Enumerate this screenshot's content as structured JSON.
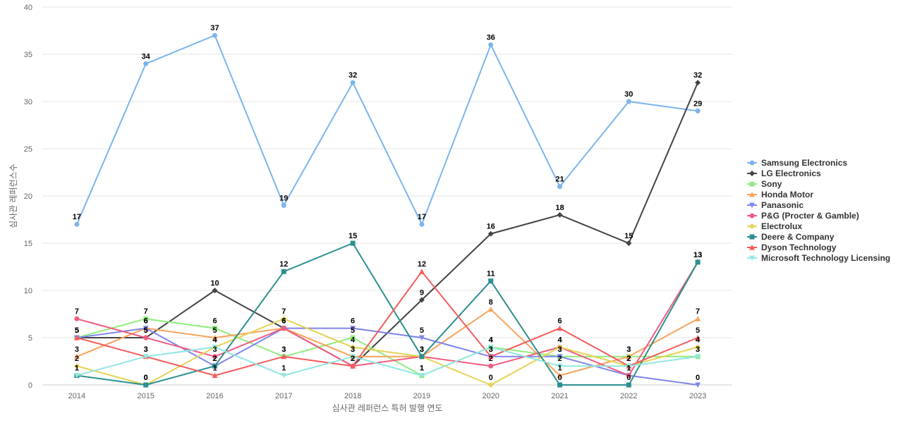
{
  "chart_data": {
    "type": "line",
    "title": "",
    "xlabel": "심사관 레퍼런스 특허 발행 연도",
    "ylabel": "심사관 레퍼런스수",
    "x": [
      "2014",
      "2015",
      "2016",
      "2017",
      "2018",
      "2019",
      "2020",
      "2021",
      "2022",
      "2023"
    ],
    "ylim": [
      0,
      40
    ],
    "yticks": [
      0,
      5,
      10,
      15,
      20,
      25,
      30,
      35,
      40
    ],
    "grid": true,
    "legend_position": "right",
    "series": [
      {
        "name": "Samsung Electronics",
        "color": "#7cb5ec",
        "marker": "circle",
        "values": [
          17,
          34,
          37,
          19,
          32,
          17,
          36,
          21,
          30,
          29
        ]
      },
      {
        "name": "LG Electronics",
        "color": "#434348",
        "marker": "diamond",
        "values": [
          5,
          5,
          10,
          6,
          2,
          9,
          16,
          18,
          15,
          32
        ]
      },
      {
        "name": "Sony",
        "color": "#90ed7d",
        "marker": "square",
        "values": [
          5,
          7,
          6,
          3,
          5,
          1,
          4,
          3,
          3,
          3
        ]
      },
      {
        "name": "Honda Motor",
        "color": "#f7a35c",
        "marker": "triangle",
        "values": [
          3,
          6,
          5,
          6,
          3,
          3,
          8,
          1,
          3,
          7
        ]
      },
      {
        "name": "Panasonic",
        "color": "#8085e9",
        "marker": "triangle-down",
        "values": [
          5,
          6,
          2,
          6,
          6,
          5,
          3,
          3,
          1,
          0
        ]
      },
      {
        "name": "P&G (Procter & Gamble)",
        "color": "#f15c80",
        "marker": "circle",
        "values": [
          7,
          5,
          3,
          6,
          2,
          3,
          2,
          4,
          1,
          13
        ]
      },
      {
        "name": "Electrolux",
        "color": "#e4d354",
        "marker": "diamond",
        "values": [
          2,
          0,
          4,
          7,
          4,
          3,
          0,
          4,
          2,
          4
        ]
      },
      {
        "name": "Deere & Company",
        "color": "#2b908f",
        "marker": "square",
        "values": [
          1,
          0,
          2,
          12,
          15,
          3,
          11,
          0,
          0,
          13
        ]
      },
      {
        "name": "Dyson Technology",
        "color": "#f45b5b",
        "marker": "triangle",
        "values": [
          5,
          3,
          1,
          3,
          2,
          12,
          3,
          6,
          2,
          5
        ]
      },
      {
        "name": "Microsoft Technology Licensing",
        "color": "#91e8e1",
        "marker": "triangle-down",
        "values": [
          1,
          3,
          4,
          1,
          3,
          1,
          4,
          2,
          2,
          3
        ]
      }
    ]
  }
}
